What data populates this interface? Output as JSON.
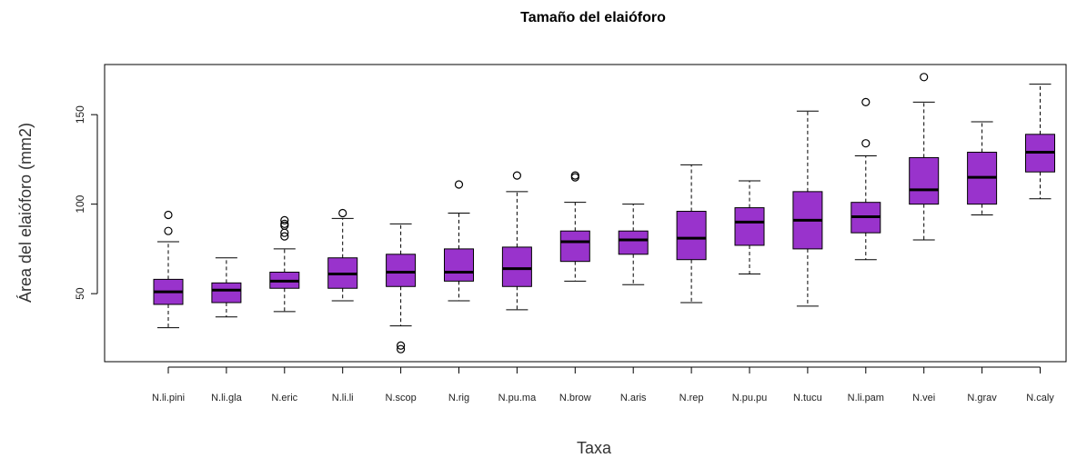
{
  "chart_data": {
    "type": "boxplot",
    "title": "Tamaño del elaióforo",
    "xlabel": "Taxa",
    "ylabel": "Área del elaióforo (mm2)",
    "ylim": [
      12,
      178
    ],
    "yticks": [
      50,
      100,
      150
    ],
    "box_color": "#9933CC",
    "categories": [
      "N.li.pini",
      "N.li.gla",
      "N.eric",
      "N.li.li",
      "N.scop",
      "N.rig",
      "N.pu.ma",
      "N.brow",
      "N.aris",
      "N.rep",
      "N.pu.pu",
      "N.tucu",
      "N.li.pam",
      "N.vei",
      "N.grav",
      "N.caly"
    ],
    "boxes": [
      {
        "whisker_low": 31,
        "q1": 44,
        "median": 51,
        "q3": 58,
        "whisker_high": 79,
        "outliers": [
          85,
          94
        ]
      },
      {
        "whisker_low": 37,
        "q1": 45,
        "median": 52,
        "q3": 56,
        "whisker_high": 70,
        "outliers": []
      },
      {
        "whisker_low": 40,
        "q1": 53,
        "median": 57,
        "q3": 62,
        "whisker_high": 75,
        "outliers": [
          82,
          84,
          88,
          89,
          91
        ]
      },
      {
        "whisker_low": 46,
        "q1": 53,
        "median": 61,
        "q3": 70,
        "whisker_high": 92,
        "outliers": [
          95
        ]
      },
      {
        "whisker_low": 32,
        "q1": 54,
        "median": 62,
        "q3": 72,
        "whisker_high": 89,
        "outliers": [
          19,
          21
        ]
      },
      {
        "whisker_low": 46,
        "q1": 57,
        "median": 62,
        "q3": 75,
        "whisker_high": 95,
        "outliers": [
          111
        ]
      },
      {
        "whisker_low": 41,
        "q1": 54,
        "median": 64,
        "q3": 76,
        "whisker_high": 107,
        "outliers": [
          116
        ]
      },
      {
        "whisker_low": 57,
        "q1": 68,
        "median": 79,
        "q3": 85,
        "whisker_high": 101,
        "outliers": [
          115,
          116
        ]
      },
      {
        "whisker_low": 55,
        "q1": 72,
        "median": 80,
        "q3": 85,
        "whisker_high": 100,
        "outliers": []
      },
      {
        "whisker_low": 45,
        "q1": 69,
        "median": 81,
        "q3": 96,
        "whisker_high": 122,
        "outliers": []
      },
      {
        "whisker_low": 61,
        "q1": 77,
        "median": 90,
        "q3": 98,
        "whisker_high": 113,
        "outliers": []
      },
      {
        "whisker_low": 43,
        "q1": 75,
        "median": 91,
        "q3": 107,
        "whisker_high": 152,
        "outliers": []
      },
      {
        "whisker_low": 69,
        "q1": 84,
        "median": 93,
        "q3": 101,
        "whisker_high": 127,
        "outliers": [
          134,
          157
        ]
      },
      {
        "whisker_low": 80,
        "q1": 100,
        "median": 108,
        "q3": 126,
        "whisker_high": 157,
        "outliers": [
          171
        ]
      },
      {
        "whisker_low": 94,
        "q1": 100,
        "median": 115,
        "q3": 129,
        "whisker_high": 146,
        "outliers": []
      },
      {
        "whisker_low": 103,
        "q1": 118,
        "median": 129,
        "q3": 139,
        "whisker_high": 167,
        "outliers": []
      }
    ],
    "grid": false,
    "legend": "none"
  }
}
